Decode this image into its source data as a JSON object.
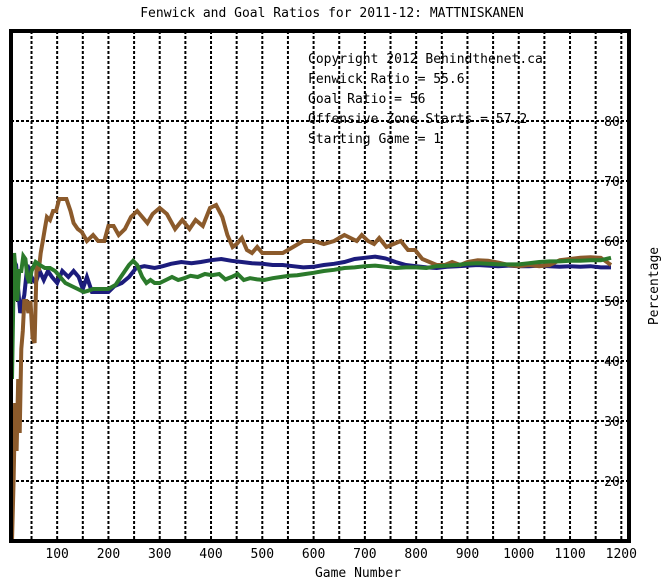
{
  "chart_data": {
    "type": "line",
    "title": "Fenwick and Goal Ratios for 2011-12: MATTNISKANEN",
    "xlabel": "Game Number",
    "ylabel": "Percentage",
    "xlim": [
      10,
      1215
    ],
    "ylim": [
      10,
      95
    ],
    "x_ticks": [
      100,
      200,
      300,
      400,
      500,
      600,
      700,
      800,
      900,
      1000,
      1100,
      1200
    ],
    "y_ticks": [
      20,
      30,
      40,
      50,
      60,
      70,
      80
    ],
    "grid": true,
    "colors": {
      "background": "#ffffff",
      "plot_frame": "#000000",
      "grid": "#000000"
    },
    "annotations": [
      {
        "text": "Copyright 2012 Behindthenet.ca",
        "color": "#000000"
      },
      {
        "text": "Fenwick Ratio = 55.6",
        "color": "#1c1c7c"
      },
      {
        "text": "Goal Ratio = 56",
        "color": "#8b5a2b"
      },
      {
        "text": "Offensive Zone Starts = 57.2",
        "color": "#2b7a2b"
      },
      {
        "text": "Starting Game = 1",
        "color": "#000000"
      }
    ],
    "series": [
      {
        "name": "Fenwick Ratio",
        "color": "#1c1c7c",
        "points": [
          [
            14,
            57
          ],
          [
            20,
            56
          ],
          [
            28,
            48
          ],
          [
            36,
            51
          ],
          [
            42,
            56
          ],
          [
            50,
            54
          ],
          [
            58,
            53
          ],
          [
            66,
            55
          ],
          [
            74,
            53.5
          ],
          [
            82,
            55
          ],
          [
            90,
            54
          ],
          [
            100,
            53
          ],
          [
            110,
            55
          ],
          [
            122,
            54
          ],
          [
            132,
            55
          ],
          [
            142,
            54
          ],
          [
            150,
            52
          ],
          [
            158,
            54
          ],
          [
            168,
            51.5
          ],
          [
            200,
            51.5
          ],
          [
            212,
            52.5
          ],
          [
            226,
            53
          ],
          [
            240,
            54
          ],
          [
            254,
            55.5
          ],
          [
            270,
            55.8
          ],
          [
            290,
            55.5
          ],
          [
            306,
            55.8
          ],
          [
            322,
            56.2
          ],
          [
            342,
            56.5
          ],
          [
            362,
            56.3
          ],
          [
            380,
            56.5
          ],
          [
            400,
            56.8
          ],
          [
            420,
            57
          ],
          [
            440,
            56.7
          ],
          [
            460,
            56.5
          ],
          [
            480,
            56.3
          ],
          [
            500,
            56.2
          ],
          [
            520,
            56
          ],
          [
            540,
            56
          ],
          [
            560,
            55.8
          ],
          [
            580,
            55.6
          ],
          [
            600,
            55.7
          ],
          [
            620,
            56
          ],
          [
            640,
            56.2
          ],
          [
            660,
            56.5
          ],
          [
            680,
            57
          ],
          [
            700,
            57.2
          ],
          [
            720,
            57.4
          ],
          [
            740,
            57.1
          ],
          [
            760,
            56.5
          ],
          [
            780,
            56
          ],
          [
            800,
            55.8
          ],
          [
            820,
            55.6
          ],
          [
            840,
            55.5
          ],
          [
            860,
            55.7
          ],
          [
            880,
            55.8
          ],
          [
            900,
            55.9
          ],
          [
            920,
            56
          ],
          [
            940,
            55.9
          ],
          [
            960,
            55.8
          ],
          [
            980,
            55.9
          ],
          [
            1000,
            55.8
          ],
          [
            1020,
            55.8
          ],
          [
            1040,
            55.9
          ],
          [
            1060,
            55.8
          ],
          [
            1080,
            55.7
          ],
          [
            1100,
            55.8
          ],
          [
            1120,
            55.7
          ],
          [
            1140,
            55.8
          ],
          [
            1160,
            55.6
          ],
          [
            1180,
            55.6
          ]
        ]
      },
      {
        "name": "Goal Ratio",
        "color": "#8b5a2b",
        "points": [
          [
            12,
            10
          ],
          [
            15,
            20
          ],
          [
            18,
            33
          ],
          [
            21,
            25
          ],
          [
            24,
            37
          ],
          [
            27,
            28
          ],
          [
            30,
            42
          ],
          [
            33,
            45
          ],
          [
            36,
            50
          ],
          [
            40,
            50
          ],
          [
            44,
            48
          ],
          [
            48,
            50
          ],
          [
            52,
            44
          ],
          [
            56,
            43
          ],
          [
            60,
            56
          ],
          [
            64,
            55
          ],
          [
            68,
            58
          ],
          [
            72,
            60
          ],
          [
            76,
            62
          ],
          [
            80,
            64
          ],
          [
            86,
            63.5
          ],
          [
            92,
            65
          ],
          [
            98,
            65
          ],
          [
            104,
            67
          ],
          [
            118,
            67
          ],
          [
            126,
            65
          ],
          [
            132,
            63
          ],
          [
            140,
            62
          ],
          [
            148,
            61.5
          ],
          [
            158,
            60
          ],
          [
            170,
            61
          ],
          [
            180,
            60
          ],
          [
            192,
            60
          ],
          [
            200,
            62.5
          ],
          [
            210,
            62.5
          ],
          [
            220,
            61
          ],
          [
            232,
            62
          ],
          [
            244,
            64
          ],
          [
            256,
            65
          ],
          [
            266,
            64
          ],
          [
            276,
            63
          ],
          [
            286,
            64.5
          ],
          [
            300,
            65.5
          ],
          [
            314,
            64.5
          ],
          [
            330,
            62
          ],
          [
            344,
            63.5
          ],
          [
            358,
            62
          ],
          [
            370,
            63.5
          ],
          [
            384,
            62.5
          ],
          [
            398,
            65.5
          ],
          [
            410,
            66
          ],
          [
            422,
            64
          ],
          [
            432,
            61
          ],
          [
            442,
            59
          ],
          [
            450,
            59.5
          ],
          [
            460,
            60.5
          ],
          [
            470,
            58.5
          ],
          [
            480,
            58
          ],
          [
            490,
            59
          ],
          [
            500,
            58
          ],
          [
            520,
            58
          ],
          [
            540,
            58
          ],
          [
            560,
            59
          ],
          [
            580,
            60
          ],
          [
            600,
            60
          ],
          [
            620,
            59.5
          ],
          [
            640,
            60
          ],
          [
            660,
            61
          ],
          [
            672,
            60.5
          ],
          [
            684,
            60
          ],
          [
            694,
            61
          ],
          [
            706,
            60
          ],
          [
            718,
            59.5
          ],
          [
            728,
            60.5
          ],
          [
            742,
            59
          ],
          [
            756,
            59.5
          ],
          [
            770,
            60
          ],
          [
            784,
            58.5
          ],
          [
            798,
            58.5
          ],
          [
            812,
            57
          ],
          [
            826,
            56.5
          ],
          [
            840,
            56
          ],
          [
            856,
            56
          ],
          [
            870,
            56.5
          ],
          [
            886,
            56
          ],
          [
            900,
            56.5
          ],
          [
            920,
            56.8
          ],
          [
            940,
            56.7
          ],
          [
            960,
            56.4
          ],
          [
            980,
            56
          ],
          [
            1000,
            55.8
          ],
          [
            1020,
            56
          ],
          [
            1040,
            55.8
          ],
          [
            1060,
            56
          ],
          [
            1080,
            56.8
          ],
          [
            1100,
            57
          ],
          [
            1120,
            57.2
          ],
          [
            1140,
            57.3
          ],
          [
            1160,
            57.2
          ],
          [
            1180,
            56
          ]
        ]
      },
      {
        "name": "Offensive Zone Starts",
        "color": "#2b7a2b",
        "points": [
          [
            12,
            37
          ],
          [
            14,
            48
          ],
          [
            16,
            58
          ],
          [
            18,
            56
          ],
          [
            22,
            50
          ],
          [
            26,
            55
          ],
          [
            30,
            55
          ],
          [
            34,
            57.5
          ],
          [
            38,
            57
          ],
          [
            42,
            54
          ],
          [
            46,
            53
          ],
          [
            50,
            55
          ],
          [
            58,
            56.5
          ],
          [
            66,
            56
          ],
          [
            76,
            55.5
          ],
          [
            86,
            55.5
          ],
          [
            96,
            55
          ],
          [
            106,
            54
          ],
          [
            116,
            53
          ],
          [
            128,
            52.5
          ],
          [
            140,
            52
          ],
          [
            152,
            51.5
          ],
          [
            160,
            51.7
          ],
          [
            170,
            52
          ],
          [
            186,
            52
          ],
          [
            200,
            52
          ],
          [
            214,
            52.7
          ],
          [
            224,
            54
          ],
          [
            232,
            55
          ],
          [
            240,
            56
          ],
          [
            248,
            56.7
          ],
          [
            256,
            56
          ],
          [
            266,
            54
          ],
          [
            274,
            53
          ],
          [
            282,
            53.5
          ],
          [
            290,
            53
          ],
          [
            300,
            53
          ],
          [
            312,
            53.5
          ],
          [
            324,
            54
          ],
          [
            336,
            53.5
          ],
          [
            348,
            53.8
          ],
          [
            360,
            54.2
          ],
          [
            374,
            54
          ],
          [
            388,
            54.5
          ],
          [
            402,
            54.3
          ],
          [
            416,
            54.5
          ],
          [
            428,
            53.6
          ],
          [
            440,
            54
          ],
          [
            452,
            54.5
          ],
          [
            464,
            53.5
          ],
          [
            476,
            53.8
          ],
          [
            490,
            53.6
          ],
          [
            504,
            53.5
          ],
          [
            520,
            53.8
          ],
          [
            536,
            54
          ],
          [
            552,
            54.2
          ],
          [
            568,
            54.3
          ],
          [
            584,
            54.5
          ],
          [
            600,
            54.7
          ],
          [
            620,
            55
          ],
          [
            640,
            55.2
          ],
          [
            660,
            55.5
          ],
          [
            680,
            55.6
          ],
          [
            700,
            55.8
          ],
          [
            720,
            55.9
          ],
          [
            740,
            55.7
          ],
          [
            760,
            55.5
          ],
          [
            780,
            55.6
          ],
          [
            800,
            55.6
          ],
          [
            820,
            55.5
          ],
          [
            840,
            55.8
          ],
          [
            860,
            55.9
          ],
          [
            880,
            56
          ],
          [
            900,
            56.2
          ],
          [
            920,
            56.3
          ],
          [
            940,
            56.2
          ],
          [
            960,
            56.1
          ],
          [
            980,
            56.1
          ],
          [
            1000,
            56.1
          ],
          [
            1020,
            56.3
          ],
          [
            1040,
            56.5
          ],
          [
            1060,
            56.6
          ],
          [
            1080,
            56.6
          ],
          [
            1100,
            56.7
          ],
          [
            1120,
            56.7
          ],
          [
            1140,
            56.8
          ],
          [
            1160,
            56.8
          ],
          [
            1180,
            57.2
          ]
        ]
      }
    ]
  }
}
